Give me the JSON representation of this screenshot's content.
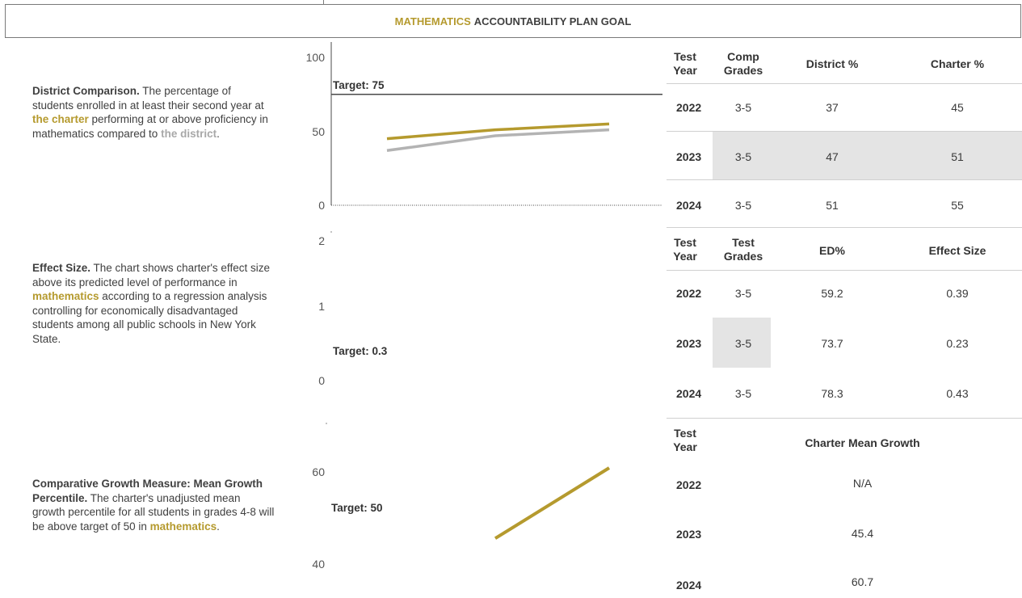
{
  "header": {
    "accent": "MATHEMATICS",
    "rest": "ACCOUNTABILITY PLAN GOAL"
  },
  "colors": {
    "charter": "#b59a2e",
    "district": "#b3b3b3",
    "target_line": "#4a4a4a",
    "shade": "#e4e4e4"
  },
  "section1": {
    "desc_bold": "District Comparison.",
    "desc_text1": " The percentage of students enrolled in at least their second year at ",
    "desc_gold": "the charter",
    "desc_text2": " performing at or above proficiency in mathematics compared to ",
    "desc_grey": "the district",
    "desc_text3": ".",
    "target_label": "Target: 75",
    "y_ticks": [
      "100",
      "50",
      "0"
    ],
    "table": {
      "headers": [
        "Test\nYear",
        "Comp\nGrades",
        "District %",
        "Charter %"
      ],
      "rows": [
        {
          "year": "2022",
          "grades": "3-5",
          "a": "37",
          "b": "45"
        },
        {
          "year": "2023",
          "grades": "3-5",
          "a": "47",
          "b": "51"
        },
        {
          "year": "2024",
          "grades": "3-5",
          "a": "51",
          "b": "55"
        }
      ]
    }
  },
  "section2": {
    "desc_bold": "Effect Size.",
    "desc_text1": " The chart shows charter's effect size above its predicted level of performance in ",
    "desc_gold": "mathematics",
    "desc_text2": " according to a regression analysis controlling for economically disadvantaged students among all public schools in New York State.",
    "target_label": "Target: 0.3",
    "y_ticks": [
      "2",
      "1",
      "0"
    ],
    "table": {
      "headers": [
        "Test\nYear",
        "Test\nGrades",
        "ED%",
        "Effect Size"
      ],
      "rows": [
        {
          "year": "2022",
          "grades": "3-5",
          "a": "59.2",
          "b": "0.39"
        },
        {
          "year": "2023",
          "grades": "3-5",
          "a": "73.7",
          "b": "0.23"
        },
        {
          "year": "2024",
          "grades": "3-5",
          "a": "78.3",
          "b": "0.43"
        }
      ]
    }
  },
  "section3": {
    "desc_bold": "Comparative Growth Measure: Mean Growth Percentile.",
    "desc_text1": " The charter's unadjusted mean growth percentile for all students in grades 4-8 will be above target of 50 in ",
    "desc_gold": "mathematics",
    "desc_text2": ".",
    "target_label": "Target: 50",
    "y_ticks": [
      "60",
      "40"
    ],
    "table": {
      "headers": [
        "Test\nYear",
        "Charter Mean Growth"
      ],
      "rows": [
        {
          "year": "2022",
          "value": "N/A"
        },
        {
          "year": "2023",
          "value": "45.4"
        },
        {
          "year": "2024",
          "value": "60.7"
        }
      ]
    }
  },
  "chart_data": [
    {
      "type": "line",
      "categories": [
        "2022",
        "2023",
        "2024"
      ],
      "series": [
        {
          "name": "the charter",
          "values": [
            45,
            51,
            55
          ]
        },
        {
          "name": "the district",
          "values": [
            37,
            47,
            51
          ]
        }
      ],
      "target": 75,
      "ylim": [
        0,
        100
      ],
      "y_ticks": [
        0,
        50,
        100
      ]
    },
    {
      "type": "line",
      "categories": [
        "2022",
        "2023",
        "2024"
      ],
      "series": [],
      "target": 0.3,
      "ylim": [
        0,
        2
      ],
      "y_ticks": [
        0,
        1,
        2
      ]
    },
    {
      "type": "line",
      "categories": [
        "2022",
        "2023",
        "2024"
      ],
      "series": [
        {
          "name": "charter",
          "values": [
            null,
            45.4,
            60.7
          ]
        }
      ],
      "target": 50,
      "ylim": [
        40,
        60
      ],
      "y_ticks": [
        40,
        60
      ]
    }
  ]
}
